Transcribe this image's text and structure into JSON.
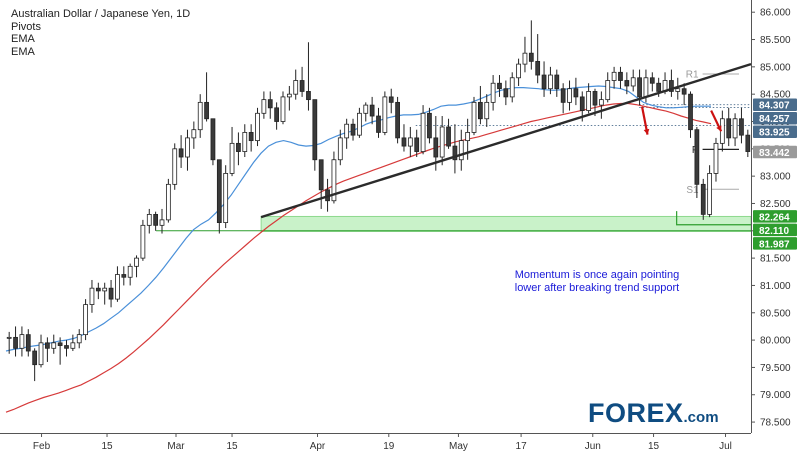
{
  "legend": {
    "title": "Australian Dollar / Japanese Yen, 1D",
    "line2": "Pivots",
    "line3": "EMA",
    "line4": "EMA"
  },
  "annotation": {
    "line1": "Momentum is once again pointing",
    "line2": "lower after breaking trend support"
  },
  "logo": {
    "text_big": "FOREX",
    "text_small": ".com"
  },
  "colors": {
    "up_candle": "#ffffff",
    "down_candle": "#3a3a3a",
    "ema_fast": "#4a90d9",
    "ema_slow": "#d63a3a",
    "trendline": "#2b2b2b",
    "support_zone": "#c9f2c9",
    "support_line": "#2e9e2e",
    "arrows": "#cc1111",
    "logo": "#0f4c81"
  },
  "chart_data": {
    "type": "candlestick",
    "x_tick_labels": [
      "Feb",
      "15",
      "Mar",
      "15",
      "Apr",
      "19",
      "May",
      "17",
      "Jun",
      "15",
      "Jul"
    ],
    "y_tick_labels": [
      "86.000",
      "85.500",
      "85.000",
      "84.500",
      "84.000",
      "83.500",
      "83.000",
      "82.500",
      "82.000",
      "81.500",
      "81.000",
      "80.500",
      "80.000",
      "79.500",
      "79.000",
      "78.500"
    ],
    "ylim": [
      78.3,
      86.15
    ],
    "price_badges": [
      {
        "label": "84.307",
        "value": 84.307,
        "color": "#4a6c8c"
      },
      {
        "label": "84.257",
        "value": 84.257,
        "color": "#4a6c8c"
      },
      {
        "label": "83.925",
        "value": 83.925,
        "color": "#4a6c8c"
      },
      {
        "label": "83.442",
        "value": 83.442,
        "color": "#9a9a9a"
      },
      {
        "label": "82.264",
        "value": 82.264,
        "color": "#2e9e2e"
      },
      {
        "label": "82.110",
        "value": 82.11,
        "color": "#2e9e2e"
      },
      {
        "label": "81.987",
        "value": 81.987,
        "color": "#2e9e2e"
      }
    ],
    "pivot_labels": [
      {
        "label": "R1",
        "value": 84.87
      },
      {
        "label": "P",
        "value": 83.49
      },
      {
        "label": "S1",
        "value": 82.76
      }
    ],
    "candles": [
      [
        80.05,
        80.15,
        79.75,
        80.05
      ],
      [
        80.05,
        80.25,
        79.7,
        79.85
      ],
      [
        79.85,
        80.25,
        79.7,
        80.1
      ],
      [
        80.1,
        80.2,
        79.7,
        79.8
      ],
      [
        79.8,
        79.85,
        79.25,
        79.55
      ],
      [
        79.55,
        80.1,
        79.5,
        79.95
      ],
      [
        79.95,
        80.05,
        79.6,
        79.85
      ],
      [
        79.85,
        80.1,
        79.75,
        79.95
      ],
      [
        79.95,
        80.05,
        79.55,
        79.9
      ],
      [
        79.9,
        80.0,
        79.7,
        79.85
      ],
      [
        79.85,
        80.1,
        79.8,
        79.95
      ],
      [
        79.95,
        80.2,
        79.85,
        80.1
      ],
      [
        80.1,
        80.75,
        80.0,
        80.65
      ],
      [
        80.65,
        81.1,
        80.5,
        80.95
      ],
      [
        80.95,
        81.05,
        80.75,
        80.9
      ],
      [
        80.9,
        81.05,
        80.65,
        80.95
      ],
      [
        80.95,
        81.1,
        80.6,
        80.75
      ],
      [
        80.75,
        81.35,
        80.7,
        81.2
      ],
      [
        81.2,
        81.35,
        81.0,
        81.15
      ],
      [
        81.15,
        81.4,
        81.0,
        81.35
      ],
      [
        81.35,
        81.55,
        81.15,
        81.5
      ],
      [
        81.5,
        82.2,
        81.45,
        82.1
      ],
      [
        82.1,
        82.4,
        81.95,
        82.3
      ],
      [
        82.3,
        82.35,
        82.0,
        82.1
      ],
      [
        82.1,
        82.4,
        81.95,
        82.2
      ],
      [
        82.2,
        82.95,
        82.15,
        82.85
      ],
      [
        82.85,
        83.6,
        82.75,
        83.5
      ],
      [
        83.5,
        83.75,
        83.15,
        83.35
      ],
      [
        83.35,
        83.85,
        83.1,
        83.7
      ],
      [
        83.7,
        84.0,
        83.5,
        83.85
      ],
      [
        83.85,
        84.5,
        83.7,
        84.35
      ],
      [
        84.35,
        84.9,
        84.0,
        84.05
      ],
      [
        84.05,
        84.05,
        83.2,
        83.3
      ],
      [
        83.3,
        83.3,
        81.95,
        82.15
      ],
      [
        82.15,
        83.2,
        82.05,
        83.05
      ],
      [
        83.05,
        83.9,
        83.0,
        83.6
      ],
      [
        83.6,
        83.8,
        83.2,
        83.45
      ],
      [
        83.45,
        83.95,
        83.35,
        83.8
      ],
      [
        83.8,
        83.95,
        83.45,
        83.65
      ],
      [
        83.65,
        84.25,
        83.55,
        84.15
      ],
      [
        84.15,
        84.55,
        84.05,
        84.4
      ],
      [
        84.4,
        84.55,
        84.05,
        84.25
      ],
      [
        84.25,
        84.35,
        83.85,
        84.0
      ],
      [
        84.0,
        84.55,
        83.95,
        84.45
      ],
      [
        84.45,
        84.65,
        84.2,
        84.5
      ],
      [
        84.5,
        84.95,
        84.4,
        84.75
      ],
      [
        84.75,
        85.0,
        84.45,
        84.55
      ],
      [
        84.55,
        85.45,
        84.2,
        84.4
      ],
      [
        84.4,
        84.4,
        83.1,
        83.3
      ],
      [
        83.3,
        83.3,
        82.4,
        82.75
      ],
      [
        82.75,
        82.95,
        82.35,
        82.55
      ],
      [
        82.55,
        83.45,
        82.5,
        83.3
      ],
      [
        83.3,
        83.85,
        83.2,
        83.7
      ],
      [
        83.7,
        84.05,
        83.5,
        83.95
      ],
      [
        83.95,
        84.05,
        83.65,
        83.75
      ],
      [
        83.75,
        84.25,
        83.7,
        84.15
      ],
      [
        84.15,
        84.35,
        84.0,
        84.3
      ],
      [
        84.3,
        84.45,
        83.95,
        84.1
      ],
      [
        84.1,
        84.25,
        83.7,
        83.8
      ],
      [
        83.8,
        84.55,
        83.75,
        84.45
      ],
      [
        84.45,
        84.6,
        84.15,
        84.35
      ],
      [
        84.35,
        84.45,
        83.6,
        83.7
      ],
      [
        83.7,
        83.95,
        83.45,
        83.55
      ],
      [
        83.55,
        83.9,
        83.35,
        83.7
      ],
      [
        83.7,
        83.85,
        83.35,
        83.45
      ],
      [
        83.45,
        84.3,
        83.4,
        84.15
      ],
      [
        84.15,
        84.25,
        83.6,
        83.7
      ],
      [
        83.7,
        84.1,
        83.1,
        83.35
      ],
      [
        83.35,
        84.1,
        83.2,
        83.9
      ],
      [
        83.9,
        84.05,
        83.5,
        83.55
      ],
      [
        83.55,
        83.95,
        83.05,
        83.3
      ],
      [
        83.3,
        83.85,
        83.1,
        83.65
      ],
      [
        83.65,
        84.05,
        83.3,
        83.8
      ],
      [
        83.8,
        84.45,
        83.75,
        84.35
      ],
      [
        84.35,
        84.65,
        83.95,
        84.05
      ],
      [
        84.05,
        84.5,
        83.9,
        84.35
      ],
      [
        84.35,
        84.85,
        84.2,
        84.7
      ],
      [
        84.7,
        84.85,
        84.45,
        84.6
      ],
      [
        84.6,
        84.75,
        84.3,
        84.45
      ],
      [
        84.45,
        84.9,
        84.35,
        84.8
      ],
      [
        84.8,
        85.15,
        84.65,
        85.05
      ],
      [
        85.05,
        85.55,
        84.9,
        85.25
      ],
      [
        85.25,
        85.85,
        84.95,
        85.1
      ],
      [
        85.1,
        85.6,
        84.7,
        84.85
      ],
      [
        84.85,
        85.1,
        84.45,
        84.6
      ],
      [
        84.6,
        85.0,
        84.5,
        84.85
      ],
      [
        84.85,
        84.95,
        84.45,
        84.6
      ],
      [
        84.6,
        84.7,
        84.15,
        84.35
      ],
      [
        84.35,
        84.75,
        84.2,
        84.6
      ],
      [
        84.6,
        84.8,
        84.3,
        84.45
      ],
      [
        84.45,
        84.55,
        84.0,
        84.2
      ],
      [
        84.2,
        84.7,
        84.15,
        84.55
      ],
      [
        84.55,
        84.6,
        84.1,
        84.3
      ],
      [
        84.3,
        84.55,
        84.05,
        84.4
      ],
      [
        84.4,
        84.9,
        84.35,
        84.75
      ],
      [
        84.75,
        85.0,
        84.6,
        84.9
      ],
      [
        84.9,
        85.0,
        84.6,
        84.75
      ],
      [
        84.75,
        84.9,
        84.5,
        84.65
      ],
      [
        84.65,
        84.95,
        84.55,
        84.8
      ],
      [
        84.8,
        84.95,
        84.3,
        84.45
      ],
      [
        84.45,
        84.95,
        84.35,
        84.8
      ],
      [
        84.8,
        84.9,
        84.55,
        84.7
      ],
      [
        84.7,
        84.8,
        84.45,
        84.55
      ],
      [
        84.55,
        84.9,
        84.5,
        84.75
      ],
      [
        84.75,
        84.95,
        84.45,
        84.55
      ],
      [
        84.55,
        84.8,
        84.4,
        84.6
      ],
      [
        84.6,
        84.7,
        84.3,
        84.5
      ],
      [
        84.5,
        84.55,
        83.7,
        83.85
      ],
      [
        83.85,
        83.9,
        82.6,
        82.85
      ],
      [
        82.85,
        82.95,
        82.2,
        82.3
      ],
      [
        82.3,
        83.2,
        82.25,
        83.05
      ],
      [
        83.05,
        83.7,
        82.9,
        83.6
      ],
      [
        83.6,
        84.2,
        83.45,
        84.05
      ],
      [
        84.05,
        84.25,
        83.55,
        83.7
      ],
      [
        83.7,
        84.15,
        83.55,
        84.05
      ],
      [
        84.05,
        84.25,
        83.6,
        83.75
      ],
      [
        83.75,
        83.85,
        83.35,
        83.45
      ]
    ],
    "ema_fast_values": [
      79.8,
      79.83,
      79.85,
      79.88,
      79.9,
      79.92,
      79.95,
      79.98,
      80.0,
      80.03,
      80.08,
      80.15,
      80.22,
      80.3,
      80.4,
      80.5,
      80.62,
      80.74,
      80.86,
      81.0,
      81.15,
      81.32,
      81.5,
      81.68,
      81.86,
      82.02,
      82.12,
      82.2,
      82.33,
      82.48,
      82.65,
      82.85,
      83.05,
      83.25,
      83.42,
      83.55,
      83.62,
      83.65,
      83.62,
      83.57,
      83.55,
      83.56,
      83.6,
      83.67,
      83.73,
      83.78,
      83.82,
      83.88,
      83.95,
      84.0,
      84.03,
      84.07,
      84.1,
      84.12,
      84.12,
      84.13,
      84.17,
      84.22,
      84.28,
      84.3,
      84.3,
      84.32,
      84.35,
      84.4,
      84.46,
      84.52,
      84.57,
      84.6,
      84.62,
      84.62,
      84.61,
      84.6,
      84.58,
      84.57,
      84.58,
      84.6,
      84.62,
      84.63,
      84.64,
      84.65,
      84.64,
      84.62,
      84.6,
      84.55,
      84.45,
      84.35,
      84.3,
      84.27,
      84.25,
      84.25,
      84.26,
      84.27,
      84.28,
      84.28,
      84.28
    ],
    "ema_slow_values": [
      78.68,
      78.73,
      78.79,
      78.85,
      78.9,
      78.95,
      78.99,
      79.03,
      79.08,
      79.13,
      79.18,
      79.25,
      79.32,
      79.4,
      79.48,
      79.57,
      79.67,
      79.78,
      79.9,
      80.02,
      80.15,
      80.28,
      80.42,
      80.56,
      80.7,
      80.84,
      80.98,
      81.12,
      81.25,
      81.38,
      81.5,
      81.62,
      81.74,
      81.86,
      81.97,
      82.08,
      82.18,
      82.28,
      82.37,
      82.46,
      82.55,
      82.63,
      82.71,
      82.78,
      82.85,
      82.91,
      82.96,
      83.01,
      83.06,
      83.11,
      83.16,
      83.21,
      83.26,
      83.31,
      83.36,
      83.41,
      83.46,
      83.51,
      83.55,
      83.59,
      83.63,
      83.66,
      83.69,
      83.72,
      83.76,
      83.8,
      83.84,
      83.88,
      83.92,
      83.96,
      84.0,
      84.03,
      84.06,
      84.09,
      84.12,
      84.15,
      84.18,
      84.21,
      84.24,
      84.27,
      84.3,
      84.32,
      84.33,
      84.33,
      84.31,
      84.28,
      84.25,
      84.22,
      84.19,
      84.15,
      84.1,
      84.06,
      84.02,
      83.99,
      83.96
    ],
    "trendline": [
      {
        "x": 0.3424,
        "y": 82.25
      },
      {
        "x": 1.0,
        "y": 85.05
      }
    ],
    "support_zone": {
      "low": 81.987,
      "high": 82.264
    }
  }
}
